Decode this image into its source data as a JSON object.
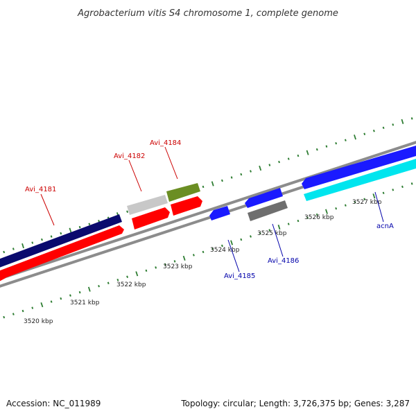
{
  "title": "Agrobacterium vitis S4 chromosome 1, complete genome",
  "footer": {
    "accession": "Accession: NC_011989",
    "summary": "Topology: circular; Length: 3,726,375 bp; Genes: 3,287"
  },
  "colors": {
    "backbone": "#8c8c8c",
    "minor_tick": "#2e7d32",
    "major_tick": "#2e7d32",
    "label_forward": "#cc0000",
    "label_reverse": "#0000aa"
  },
  "ticks": [
    {
      "label": "3520 kbp"
    },
    {
      "label": "3521 kbp"
    },
    {
      "label": "3522 kbp"
    },
    {
      "label": "3523 kbp"
    },
    {
      "label": "3524 kbp"
    },
    {
      "label": "3525 kbp"
    },
    {
      "label": "3526 kbp"
    },
    {
      "label": "3527 kbp"
    }
  ],
  "genes": [
    {
      "name": "Avi_4181",
      "strand": "forward",
      "color": "#ff0000",
      "label": "Avi_4181"
    },
    {
      "name": "Avi_4181_partner",
      "strand": "forward_outer",
      "color": "#0a0a6e",
      "label": ""
    },
    {
      "name": "Avi_4182",
      "strand": "forward",
      "color": "#c8c8c8",
      "label": "Avi_4182"
    },
    {
      "name": "Avi_4183",
      "strand": "forward_inner",
      "color": "#ff0000",
      "label": ""
    },
    {
      "name": "Avi_4184",
      "strand": "forward",
      "color": "#6b8e23",
      "label": "Avi_4184"
    },
    {
      "name": "Avi_4184b",
      "strand": "forward_inner",
      "color": "#ff0000",
      "label": ""
    },
    {
      "name": "Avi_4185",
      "strand": "reverse",
      "color": "#1a1aff",
      "label": "Avi_4185"
    },
    {
      "name": "Avi_4186",
      "strand": "reverse",
      "color": "#6e6e6e",
      "label": "Avi_4186"
    },
    {
      "name": "Avi_4186_blue",
      "strand": "reverse",
      "color": "#1a1aff",
      "label": ""
    },
    {
      "name": "acnA_outer",
      "strand": "reverse",
      "color": "#1a1aff",
      "label": ""
    },
    {
      "name": "acnA",
      "strand": "reverse",
      "color": "#00e5ee",
      "label": "acnA"
    }
  ]
}
